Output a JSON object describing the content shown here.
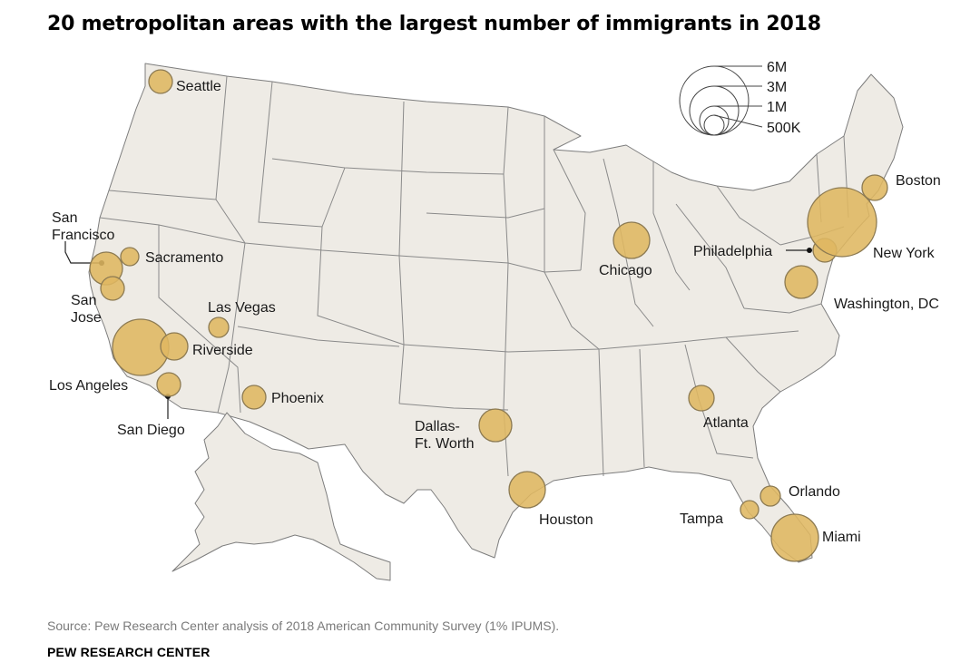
{
  "title": "20 metropolitan areas with the largest number of immigrants in 2018",
  "legend": {
    "items": [
      {
        "label": "6M",
        "value": 6000000
      },
      {
        "label": "3M",
        "value": 3000000
      },
      {
        "label": "1M",
        "value": 1000000
      },
      {
        "label": "500K",
        "value": 500000
      }
    ]
  },
  "colors": {
    "bubble": "#dfb761",
    "land": "#eeebe5",
    "border": "#7d7d7d"
  },
  "cities": [
    {
      "name": "Seattle",
      "lines": [
        "Seattle"
      ]
    },
    {
      "name": "San Francisco",
      "lines": [
        "San",
        "Francisco"
      ]
    },
    {
      "name": "Sacramento",
      "lines": [
        "Sacramento"
      ]
    },
    {
      "name": "San Jose",
      "lines": [
        "San",
        "Jose"
      ]
    },
    {
      "name": "Las Vegas",
      "lines": [
        "Las Vegas"
      ]
    },
    {
      "name": "Riverside",
      "lines": [
        "Riverside"
      ]
    },
    {
      "name": "Los Angeles",
      "lines": [
        "Los Angeles"
      ]
    },
    {
      "name": "San Diego",
      "lines": [
        "San Diego"
      ]
    },
    {
      "name": "Phoenix",
      "lines": [
        "Phoenix"
      ]
    },
    {
      "name": "Dallas-Ft. Worth",
      "lines": [
        "Dallas-",
        "Ft. Worth"
      ]
    },
    {
      "name": "Houston",
      "lines": [
        "Houston"
      ]
    },
    {
      "name": "Chicago",
      "lines": [
        "Chicago"
      ]
    },
    {
      "name": "Atlanta",
      "lines": [
        "Atlanta"
      ]
    },
    {
      "name": "Orlando",
      "lines": [
        "Orlando"
      ]
    },
    {
      "name": "Tampa",
      "lines": [
        "Tampa"
      ]
    },
    {
      "name": "Miami",
      "lines": [
        "Miami"
      ]
    },
    {
      "name": "Washington, DC",
      "lines": [
        "Washington, DC"
      ]
    },
    {
      "name": "Philadelphia",
      "lines": [
        "Philadelphia"
      ]
    },
    {
      "name": "New York",
      "lines": [
        "New York"
      ]
    },
    {
      "name": "Boston",
      "lines": [
        "Boston"
      ]
    }
  ],
  "source": "Source: Pew Research Center analysis of 2018 American Community Survey (1% IPUMS).",
  "brand": "PEW RESEARCH CENTER"
}
